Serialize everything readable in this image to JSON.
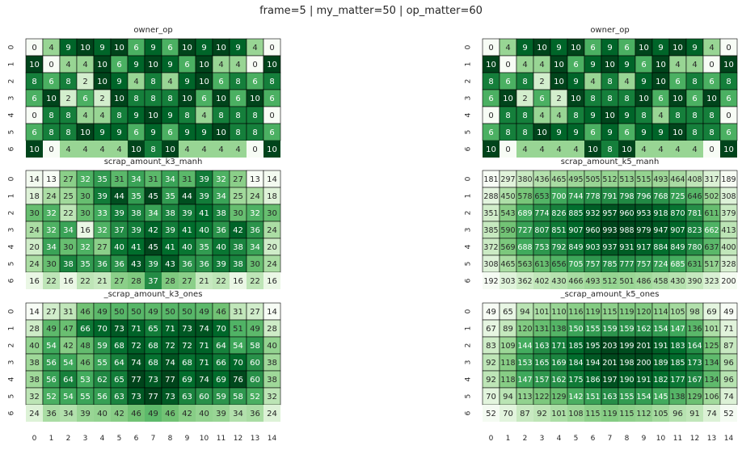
{
  "suptitle": "frame=5 | my_matter=50 | op_matter=60",
  "chart_data": [
    {
      "type": "heatmap",
      "title": "owner_op",
      "x_ticks": [
        "0",
        "1",
        "2",
        "3",
        "4",
        "5",
        "6",
        "7",
        "8",
        "9",
        "10",
        "11",
        "12",
        "13",
        "14"
      ],
      "y_ticks": [
        "0",
        "1",
        "2",
        "3",
        "4",
        "5",
        "6"
      ],
      "values": [
        [
          0,
          4,
          9,
          10,
          9,
          10,
          6,
          9,
          6,
          10,
          9,
          10,
          9,
          4,
          0
        ],
        [
          10,
          0,
          4,
          4,
          10,
          6,
          9,
          10,
          9,
          6,
          10,
          4,
          4,
          0,
          10
        ],
        [
          8,
          6,
          8,
          2,
          10,
          9,
          4,
          8,
          4,
          9,
          10,
          6,
          8,
          6,
          8
        ],
        [
          6,
          10,
          2,
          6,
          2,
          10,
          8,
          8,
          8,
          10,
          6,
          10,
          6,
          10,
          6
        ],
        [
          0,
          8,
          8,
          4,
          4,
          8,
          9,
          10,
          9,
          8,
          4,
          8,
          8,
          8,
          0
        ],
        [
          6,
          8,
          8,
          10,
          9,
          9,
          6,
          9,
          6,
          9,
          9,
          10,
          8,
          8,
          6
        ],
        [
          10,
          0,
          4,
          4,
          4,
          4,
          10,
          8,
          10,
          4,
          4,
          4,
          4,
          0,
          10
        ]
      ],
      "vmin": 0,
      "vmax": 10
    },
    {
      "type": "heatmap",
      "title": "owner_op",
      "x_ticks": [
        "0",
        "1",
        "2",
        "3",
        "4",
        "5",
        "6",
        "7",
        "8",
        "9",
        "10",
        "11",
        "12",
        "13",
        "14"
      ],
      "y_ticks": [
        "0",
        "1",
        "2",
        "3",
        "4",
        "5",
        "6"
      ],
      "values": [
        [
          0,
          4,
          9,
          10,
          9,
          10,
          6,
          9,
          6,
          10,
          9,
          10,
          9,
          4,
          0
        ],
        [
          10,
          0,
          4,
          4,
          10,
          6,
          9,
          10,
          9,
          6,
          10,
          4,
          4,
          0,
          10
        ],
        [
          8,
          6,
          8,
          2,
          10,
          9,
          4,
          8,
          4,
          9,
          10,
          6,
          8,
          6,
          8
        ],
        [
          6,
          10,
          2,
          6,
          2,
          10,
          8,
          8,
          8,
          10,
          6,
          10,
          6,
          10,
          6
        ],
        [
          0,
          8,
          8,
          4,
          4,
          8,
          9,
          10,
          9,
          8,
          4,
          8,
          8,
          8,
          0
        ],
        [
          6,
          8,
          8,
          10,
          9,
          9,
          6,
          9,
          6,
          9,
          9,
          10,
          8,
          8,
          6
        ],
        [
          10,
          0,
          4,
          4,
          4,
          4,
          10,
          8,
          10,
          4,
          4,
          4,
          4,
          0,
          10
        ]
      ],
      "vmin": 0,
      "vmax": 10
    },
    {
      "type": "heatmap",
      "title": "scrap_amount_k3_manh",
      "x_ticks": [
        "0",
        "1",
        "2",
        "3",
        "4",
        "5",
        "6",
        "7",
        "8",
        "9",
        "10",
        "11",
        "12",
        "13",
        "14"
      ],
      "y_ticks": [
        "0",
        "1",
        "2",
        "3",
        "4",
        "5",
        "6"
      ],
      "values": [
        [
          14,
          13,
          27,
          32,
          35,
          31,
          34,
          31,
          34,
          31,
          39,
          32,
          27,
          13,
          14
        ],
        [
          18,
          24,
          25,
          30,
          39,
          44,
          35,
          45,
          35,
          44,
          39,
          34,
          25,
          24,
          18
        ],
        [
          30,
          32,
          22,
          30,
          33,
          39,
          38,
          34,
          38,
          39,
          41,
          38,
          30,
          32,
          30
        ],
        [
          24,
          32,
          34,
          16,
          32,
          37,
          39,
          42,
          39,
          41,
          40,
          36,
          42,
          36,
          24
        ],
        [
          20,
          34,
          30,
          32,
          27,
          40,
          41,
          45,
          41,
          40,
          35,
          40,
          38,
          34,
          20
        ],
        [
          24,
          30,
          38,
          35,
          36,
          36,
          43,
          39,
          43,
          36,
          36,
          39,
          38,
          30,
          24
        ],
        [
          16,
          22,
          16,
          22,
          21,
          27,
          28,
          37,
          28,
          27,
          21,
          22,
          16,
          22,
          16
        ]
      ],
      "vmin": 13,
      "vmax": 45
    },
    {
      "type": "heatmap",
      "title": "scrap_amount_k5_manh",
      "x_ticks": [
        "0",
        "1",
        "2",
        "3",
        "4",
        "5",
        "6",
        "7",
        "8",
        "9",
        "10",
        "11",
        "12",
        "13",
        "14"
      ],
      "y_ticks": [
        "0",
        "1",
        "2",
        "3",
        "4",
        "5",
        "6"
      ],
      "values": [
        [
          181,
          297,
          380,
          436,
          465,
          495,
          505,
          512,
          513,
          515,
          493,
          464,
          408,
          317,
          189
        ],
        [
          288,
          450,
          578,
          653,
          700,
          744,
          778,
          791,
          798,
          796,
          768,
          725,
          646,
          502,
          308
        ],
        [
          351,
          543,
          689,
          774,
          826,
          885,
          932,
          957,
          960,
          953,
          918,
          870,
          781,
          611,
          379
        ],
        [
          385,
          590,
          727,
          807,
          851,
          907,
          960,
          993,
          988,
          979,
          947,
          907,
          823,
          662,
          413
        ],
        [
          372,
          569,
          688,
          753,
          792,
          849,
          903,
          937,
          931,
          917,
          884,
          849,
          780,
          637,
          400
        ],
        [
          308,
          465,
          563,
          613,
          656,
          705,
          757,
          785,
          777,
          757,
          724,
          685,
          631,
          517,
          328
        ],
        [
          192,
          303,
          362,
          402,
          430,
          466,
          493,
          512,
          501,
          486,
          458,
          430,
          390,
          323,
          200
        ]
      ],
      "vmin": 181,
      "vmax": 993
    },
    {
      "type": "heatmap",
      "title": "_scrap_amount_k3_ones",
      "x_ticks": [
        "0",
        "1",
        "2",
        "3",
        "4",
        "5",
        "6",
        "7",
        "8",
        "9",
        "10",
        "11",
        "12",
        "13",
        "14"
      ],
      "y_ticks": [
        "0",
        "1",
        "2",
        "3",
        "4",
        "5",
        "6"
      ],
      "values": [
        [
          14,
          27,
          31,
          46,
          49,
          50,
          50,
          49,
          50,
          50,
          49,
          46,
          31,
          27,
          14
        ],
        [
          28,
          49,
          47,
          66,
          70,
          73,
          71,
          65,
          71,
          73,
          74,
          70,
          51,
          49,
          28
        ],
        [
          40,
          54,
          42,
          48,
          59,
          68,
          72,
          68,
          72,
          72,
          71,
          64,
          54,
          58,
          40
        ],
        [
          38,
          56,
          54,
          46,
          55,
          64,
          74,
          68,
          74,
          68,
          71,
          66,
          70,
          60,
          38
        ],
        [
          38,
          56,
          64,
          53,
          62,
          65,
          77,
          73,
          77,
          69,
          74,
          69,
          76,
          60,
          38
        ],
        [
          32,
          52,
          54,
          55,
          56,
          63,
          73,
          77,
          73,
          63,
          60,
          59,
          58,
          52,
          32
        ],
        [
          24,
          36,
          34,
          39,
          40,
          42,
          46,
          49,
          46,
          42,
          40,
          39,
          34,
          36,
          24
        ]
      ],
      "vmin": 14,
      "vmax": 77
    },
    {
      "type": "heatmap",
      "title": "_scrap_amount_k5_ones",
      "x_ticks": [
        "0",
        "1",
        "2",
        "3",
        "4",
        "5",
        "6",
        "7",
        "8",
        "9",
        "10",
        "11",
        "12",
        "13",
        "14"
      ],
      "y_ticks": [
        "0",
        "1",
        "2",
        "3",
        "4",
        "5",
        "6"
      ],
      "values": [
        [
          49,
          65,
          94,
          101,
          110,
          116,
          119,
          115,
          119,
          120,
          114,
          105,
          98,
          69,
          49
        ],
        [
          67,
          89,
          120,
          131,
          138,
          150,
          155,
          159,
          159,
          162,
          154,
          147,
          136,
          101,
          71
        ],
        [
          83,
          109,
          144,
          163,
          171,
          185,
          195,
          203,
          199,
          201,
          191,
          183,
          164,
          125,
          87
        ],
        [
          92,
          118,
          153,
          165,
          169,
          184,
          194,
          201,
          198,
          200,
          189,
          185,
          173,
          134,
          96
        ],
        [
          92,
          118,
          147,
          157,
          162,
          175,
          186,
          197,
          190,
          191,
          182,
          177,
          167,
          134,
          96
        ],
        [
          70,
          94,
          113,
          122,
          129,
          142,
          151,
          163,
          155,
          154,
          145,
          138,
          129,
          106,
          74
        ],
        [
          52,
          70,
          87,
          92,
          101,
          108,
          115,
          119,
          115,
          112,
          105,
          96,
          91,
          74,
          52
        ]
      ],
      "vmin": 49,
      "vmax": 203
    }
  ],
  "colors": {
    "low": "#f7fcf5",
    "high": "#00441b",
    "text_dark": "#262626",
    "text_light": "#ffffff",
    "grid": "#000000"
  }
}
